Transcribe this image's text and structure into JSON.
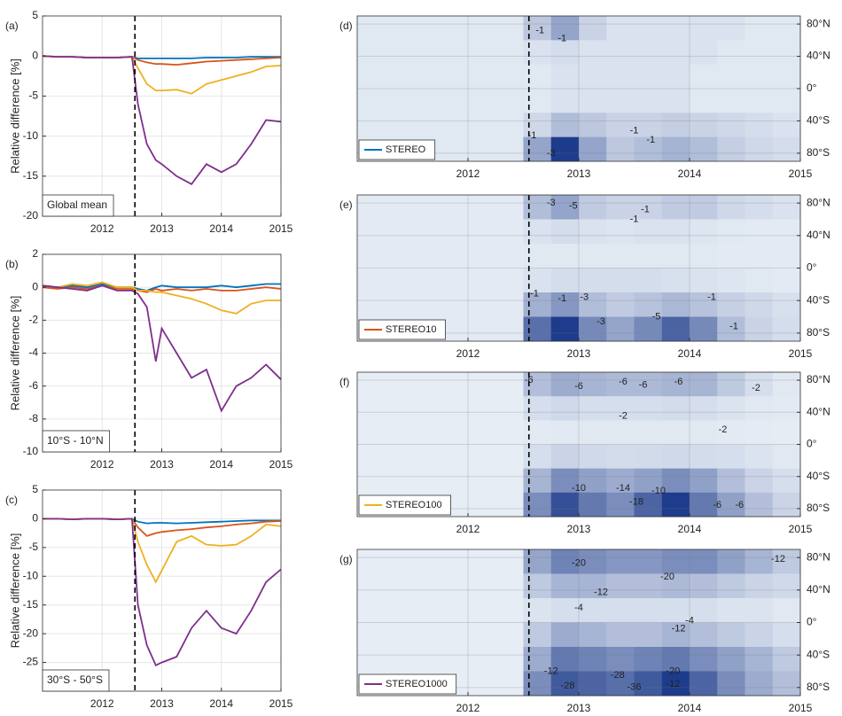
{
  "chart_data": [
    {
      "type": "line",
      "panel": "(a)",
      "region": "Global mean",
      "ylabel": "Relative difference [%]",
      "xlim": [
        2011,
        2015
      ],
      "xticks": [
        2012,
        2013,
        2014,
        2015
      ],
      "ylim": [
        -20,
        5
      ],
      "yticks": [
        -20,
        -15,
        -10,
        -5,
        0,
        5
      ],
      "grid": true,
      "marker_line": 2012.55,
      "x": [
        2011,
        2011.25,
        2011.5,
        2011.75,
        2012,
        2012.25,
        2012.5,
        2012.6,
        2012.75,
        2012.9,
        2013,
        2013.25,
        2013.5,
        2013.75,
        2014,
        2014.25,
        2014.5,
        2014.75,
        2015
      ],
      "series": [
        {
          "color": "#0072bd",
          "values": [
            0,
            -0.1,
            -0.1,
            -0.2,
            -0.2,
            -0.2,
            -0.1,
            -0.3,
            -0.3,
            -0.3,
            -0.3,
            -0.3,
            -0.3,
            -0.2,
            -0.2,
            -0.2,
            -0.1,
            -0.1,
            -0.1
          ]
        },
        {
          "color": "#d95319",
          "values": [
            0,
            -0.1,
            -0.1,
            -0.2,
            -0.2,
            -0.2,
            -0.1,
            -0.5,
            -0.8,
            -1,
            -1,
            -1.1,
            -0.9,
            -0.7,
            -0.6,
            -0.5,
            -0.4,
            -0.3,
            -0.2
          ]
        },
        {
          "color": "#edb120",
          "values": [
            0,
            -0.1,
            -0.1,
            -0.2,
            -0.2,
            -0.2,
            -0.1,
            -1.5,
            -3.5,
            -4.3,
            -4.3,
            -4.2,
            -4.7,
            -3.5,
            -3,
            -2.5,
            -2,
            -1.3,
            -1.2
          ]
        },
        {
          "color": "#7e2f8e",
          "values": [
            0,
            -0.1,
            -0.1,
            -0.2,
            -0.2,
            -0.2,
            -0.1,
            -6,
            -11,
            -13,
            -13.5,
            -15,
            -16,
            -13.5,
            -14.5,
            -13.5,
            -11,
            -8,
            -8.2
          ]
        }
      ]
    },
    {
      "type": "line",
      "panel": "(b)",
      "region": "10°S - 10°N",
      "ylabel": "Relative difference [%]",
      "xlim": [
        2011,
        2015
      ],
      "xticks": [
        2012,
        2013,
        2014,
        2015
      ],
      "ylim": [
        -10,
        2
      ],
      "yticks": [
        -10,
        -8,
        -6,
        -4,
        -2,
        0,
        2
      ],
      "grid": true,
      "marker_line": 2012.55,
      "x": [
        2011,
        2011.25,
        2011.5,
        2011.75,
        2012,
        2012.25,
        2012.5,
        2012.6,
        2012.75,
        2012.9,
        2013,
        2013.25,
        2013.5,
        2013.75,
        2014,
        2014.25,
        2014.5,
        2014.75,
        2015
      ],
      "series": [
        {
          "color": "#0072bd",
          "values": [
            0.1,
            0,
            0.1,
            0,
            0.2,
            0,
            0,
            -0.1,
            -0.2,
            0,
            0.1,
            0,
            0,
            0,
            0.1,
            0,
            0.1,
            0.2,
            0.2
          ]
        },
        {
          "color": "#d95319",
          "values": [
            0,
            -0.1,
            0,
            -0.1,
            0.1,
            -0.1,
            -0.1,
            -0.2,
            -0.3,
            -0.1,
            -0.2,
            -0.1,
            -0.2,
            -0.1,
            -0.2,
            -0.2,
            -0.1,
            0,
            -0.1
          ]
        },
        {
          "color": "#edb120",
          "values": [
            0.1,
            0,
            0.2,
            0.1,
            0.3,
            0,
            0,
            -0.2,
            -0.2,
            -0.3,
            -0.3,
            -0.5,
            -0.7,
            -1,
            -1.4,
            -1.6,
            -1,
            -0.8,
            -0.8
          ]
        },
        {
          "color": "#7e2f8e",
          "values": [
            0.1,
            0,
            -0.1,
            -0.2,
            0.1,
            -0.2,
            -0.2,
            -0.4,
            -1.2,
            -4.5,
            -2.5,
            -4,
            -5.5,
            -5,
            -7.5,
            -6,
            -5.5,
            -4.7,
            -5.6
          ]
        }
      ]
    },
    {
      "type": "line",
      "panel": "(c)",
      "region": "30°S - 50°S",
      "ylabel": "Relative difference [%]",
      "xlim": [
        2011,
        2015
      ],
      "xticks": [
        2012,
        2013,
        2014,
        2015
      ],
      "ylim": [
        -30,
        5
      ],
      "yticks": [
        -25,
        -20,
        -15,
        -10,
        -5,
        0,
        5
      ],
      "grid": true,
      "marker_line": 2012.55,
      "x": [
        2011,
        2011.25,
        2011.5,
        2011.75,
        2012,
        2012.25,
        2012.5,
        2012.6,
        2012.75,
        2012.9,
        2013,
        2013.25,
        2013.5,
        2013.75,
        2014,
        2014.25,
        2014.5,
        2014.75,
        2015
      ],
      "series": [
        {
          "color": "#0072bd",
          "values": [
            0,
            0,
            -0.1,
            0,
            0,
            -0.1,
            0,
            -0.5,
            -0.8,
            -0.7,
            -0.7,
            -0.8,
            -0.7,
            -0.6,
            -0.5,
            -0.4,
            -0.3,
            -0.3,
            -0.3
          ]
        },
        {
          "color": "#d95319",
          "values": [
            0,
            0,
            -0.1,
            0,
            0,
            -0.1,
            0,
            -1.5,
            -3,
            -2.5,
            -2.3,
            -2,
            -1.8,
            -1.5,
            -1.3,
            -1,
            -0.8,
            -0.5,
            -0.4
          ]
        },
        {
          "color": "#edb120",
          "values": [
            0,
            0,
            -0.1,
            0,
            0,
            -0.1,
            0,
            -4,
            -8,
            -11,
            -9,
            -4,
            -3,
            -4.5,
            -4.7,
            -4.5,
            -3,
            -1,
            -1.3
          ]
        },
        {
          "color": "#7e2f8e",
          "values": [
            0,
            0,
            -0.1,
            0,
            0,
            -0.1,
            0,
            -15,
            -22,
            -25.5,
            -25,
            -24,
            -19,
            -16,
            -19,
            -20,
            -16,
            -11,
            -8.8
          ]
        }
      ]
    },
    {
      "type": "heatmap",
      "panel": "(d)",
      "legend": {
        "name": "STEREO",
        "color": "#0072bd"
      },
      "xlim": [
        2011,
        2015
      ],
      "xticks": [
        2012,
        2013,
        2014,
        2015
      ],
      "ylim": [
        -90,
        90
      ],
      "grid": true,
      "marker_line": 2012.55,
      "yticks": [
        {
          "value": -80,
          "label": "80°S"
        },
        {
          "value": -40,
          "label": "40°S"
        },
        {
          "value": 0,
          "label": "0°"
        },
        {
          "value": 40,
          "label": "40°N"
        },
        {
          "value": 80,
          "label": "80°N"
        }
      ],
      "x_edges": [
        2011,
        2011.25,
        2011.5,
        2011.75,
        2012,
        2012.25,
        2012.5,
        2012.75,
        2013,
        2013.25,
        2013.5,
        2013.75,
        2014,
        2014.25,
        2014.5,
        2014.75,
        2015
      ],
      "y_edges": [
        90,
        60,
        30,
        0,
        -30,
        -60,
        -90
      ],
      "z": [
        [
          -0.2,
          -0.2,
          -0.2,
          -0.2,
          -0.2,
          -0.2,
          -0.8,
          -1.5,
          -0.6,
          -0.3,
          -0.3,
          -0.3,
          -0.3,
          -0.3,
          -0.2,
          -0.2
        ],
        [
          -0.2,
          -0.2,
          -0.2,
          -0.2,
          -0.2,
          -0.2,
          -0.3,
          -0.4,
          -0.3,
          -0.3,
          -0.3,
          -0.3,
          -0.3,
          -0.2,
          -0.2,
          -0.2
        ],
        [
          -0.2,
          -0.2,
          -0.2,
          -0.2,
          -0.2,
          -0.2,
          -0.2,
          -0.3,
          -0.3,
          -0.3,
          -0.3,
          -0.3,
          -0.2,
          -0.2,
          -0.2,
          -0.2
        ],
        [
          -0.2,
          -0.2,
          -0.2,
          -0.2,
          -0.2,
          -0.2,
          -0.2,
          -0.3,
          -0.3,
          -0.3,
          -0.3,
          -0.3,
          -0.2,
          -0.2,
          -0.2,
          -0.2
        ],
        [
          -0.2,
          -0.2,
          -0.2,
          -0.2,
          -0.2,
          -0.2,
          -0.5,
          -1,
          -0.8,
          -0.6,
          -0.6,
          -0.7,
          -0.6,
          -0.5,
          -0.4,
          -0.3
        ],
        [
          -0.2,
          -0.2,
          -0.2,
          -0.2,
          -0.2,
          -0.2,
          -1.5,
          -3.5,
          -1.5,
          -0.8,
          -1,
          -1.2,
          -1,
          -0.7,
          -0.5,
          -0.4
        ]
      ],
      "contour_labels": [
        -1,
        -1,
        -3,
        -1,
        -1,
        -1
      ]
    },
    {
      "type": "heatmap",
      "panel": "(e)",
      "legend": {
        "name": "STEREO10",
        "color": "#d95319"
      },
      "xlim": [
        2011,
        2015
      ],
      "xticks": [
        2012,
        2013,
        2014,
        2015
      ],
      "ylim": [
        -90,
        90
      ],
      "grid": true,
      "marker_line": 2012.55,
      "yticks": [
        {
          "value": -80,
          "label": "80°S"
        },
        {
          "value": -40,
          "label": "40°S"
        },
        {
          "value": 0,
          "label": "0°"
        },
        {
          "value": 40,
          "label": "40°N"
        },
        {
          "value": 80,
          "label": "80°N"
        }
      ],
      "x_edges": [
        2011,
        2011.25,
        2011.5,
        2011.75,
        2012,
        2012.25,
        2012.5,
        2012.75,
        2013,
        2013.25,
        2013.5,
        2013.75,
        2014,
        2014.25,
        2014.5,
        2014.75,
        2015
      ],
      "y_edges": [
        90,
        60,
        30,
        0,
        -30,
        -60,
        -90
      ],
      "z": [
        [
          -0.3,
          -0.3,
          -0.3,
          -0.3,
          -0.3,
          -0.3,
          -2,
          -3,
          -1.5,
          -1.2,
          -1.2,
          -1.5,
          -1.5,
          -1,
          -0.8,
          -0.6
        ],
        [
          -0.3,
          -0.3,
          -0.3,
          -0.3,
          -0.3,
          -0.3,
          -0.6,
          -0.8,
          -0.6,
          -0.5,
          -0.6,
          -0.6,
          -0.5,
          -0.4,
          -0.3,
          -0.3
        ],
        [
          -0.3,
          -0.3,
          -0.3,
          -0.3,
          -0.3,
          -0.3,
          -0.4,
          -0.4,
          -0.4,
          -0.4,
          -0.4,
          -0.4,
          -0.4,
          -0.3,
          -0.3,
          -0.3
        ],
        [
          -0.3,
          -0.3,
          -0.3,
          -0.3,
          -0.3,
          -0.3,
          -0.6,
          -0.8,
          -0.8,
          -0.8,
          -0.8,
          -0.7,
          -0.6,
          -0.5,
          -0.4,
          -0.3
        ],
        [
          -0.3,
          -0.3,
          -0.3,
          -0.3,
          -0.3,
          -0.3,
          -2.5,
          -3.5,
          -2,
          -1.5,
          -1.8,
          -2.2,
          -1.8,
          -1.3,
          -1,
          -0.7
        ],
        [
          -0.3,
          -0.3,
          -0.3,
          -0.3,
          -0.3,
          -0.3,
          -5,
          -7,
          -4,
          -3,
          -4,
          -5.5,
          -4,
          -2,
          -1.2,
          -0.8
        ]
      ],
      "contour_labels": [
        -3,
        -5,
        -1,
        -1,
        -1,
        -1,
        -3,
        -1,
        -3,
        -5,
        -1
      ]
    },
    {
      "type": "heatmap",
      "panel": "(f)",
      "legend": {
        "name": "STEREO100",
        "color": "#edb120"
      },
      "xlim": [
        2011,
        2015
      ],
      "xticks": [
        2012,
        2013,
        2014,
        2015
      ],
      "ylim": [
        -90,
        90
      ],
      "grid": true,
      "marker_line": 2012.55,
      "yticks": [
        {
          "value": -80,
          "label": "80°S"
        },
        {
          "value": -40,
          "label": "40°S"
        },
        {
          "value": 0,
          "label": "0°"
        },
        {
          "value": 40,
          "label": "40°N"
        },
        {
          "value": 80,
          "label": "80°N"
        }
      ],
      "x_edges": [
        2011,
        2011.25,
        2011.5,
        2011.75,
        2012,
        2012.25,
        2012.5,
        2012.75,
        2013,
        2013.25,
        2013.5,
        2013.75,
        2014,
        2014.25,
        2014.5,
        2014.75,
        2015
      ],
      "y_edges": [
        90,
        60,
        30,
        0,
        -30,
        -60,
        -90
      ],
      "z": [
        [
          -0.5,
          -0.5,
          -0.5,
          -0.5,
          -0.5,
          -0.5,
          -5,
          -7,
          -6,
          -5.5,
          -5.5,
          -6,
          -6,
          -4,
          -2,
          -1
        ],
        [
          -0.5,
          -0.5,
          -0.5,
          -0.5,
          -0.5,
          -0.5,
          -2,
          -2.5,
          -2,
          -2,
          -2,
          -2.2,
          -2,
          -1.5,
          -1,
          -0.8
        ],
        [
          -0.5,
          -0.5,
          -0.5,
          -0.5,
          -0.5,
          -0.5,
          -0.8,
          -1,
          -1,
          -1,
          -1,
          -1,
          -1,
          -0.8,
          -0.7,
          -0.6
        ],
        [
          -0.5,
          -0.5,
          -0.5,
          -0.5,
          -0.5,
          -0.5,
          -2,
          -3,
          -2.5,
          -2.2,
          -2.3,
          -2.5,
          -2.2,
          -2,
          -1.5,
          -1
        ],
        [
          -0.5,
          -0.5,
          -0.5,
          -0.5,
          -0.5,
          -0.5,
          -6,
          -10,
          -8,
          -7,
          -8,
          -10,
          -8,
          -5,
          -3,
          -2
        ],
        [
          -0.5,
          -0.5,
          -0.5,
          -0.5,
          -0.5,
          -0.5,
          -10,
          -16,
          -12,
          -10,
          -14,
          -18,
          -12,
          -8,
          -5,
          -3
        ]
      ],
      "contour_labels": [
        -6,
        -6,
        -6,
        -6,
        -6,
        -2,
        -2,
        -2,
        -10,
        -14,
        -18,
        -10,
        -6,
        -6
      ]
    },
    {
      "type": "heatmap",
      "panel": "(g)",
      "legend": {
        "name": "STEREO1000",
        "color": "#7e2f8e"
      },
      "xlim": [
        2011,
        2015
      ],
      "xticks": [
        2012,
        2013,
        2014,
        2015
      ],
      "ylim": [
        -90,
        90
      ],
      "grid": true,
      "marker_line": 2012.55,
      "yticks": [
        {
          "value": -80,
          "label": "80°S"
        },
        {
          "value": -40,
          "label": "40°S"
        },
        {
          "value": 0,
          "label": "0°"
        },
        {
          "value": 40,
          "label": "40°N"
        },
        {
          "value": 80,
          "label": "80°N"
        }
      ],
      "x_edges": [
        2011,
        2011.25,
        2011.5,
        2011.75,
        2012,
        2012.25,
        2012.5,
        2012.75,
        2013,
        2013.25,
        2013.5,
        2013.75,
        2014,
        2014.25,
        2014.5,
        2014.75,
        2015
      ],
      "y_edges": [
        90,
        60,
        30,
        0,
        -30,
        -60,
        -90
      ],
      "z": [
        [
          -1,
          -1,
          -1,
          -1,
          -1,
          -1,
          -15,
          -22,
          -20,
          -18,
          -18,
          -20,
          -20,
          -16,
          -12,
          -8
        ],
        [
          -1,
          -1,
          -1,
          -1,
          -1,
          -1,
          -8,
          -12,
          -12,
          -10,
          -10,
          -11,
          -10,
          -8,
          -6,
          -5
        ],
        [
          -1,
          -1,
          -1,
          -1,
          -1,
          -1,
          -3,
          -4,
          -4,
          -4,
          -4,
          -4,
          -4,
          -3,
          -3,
          -2
        ],
        [
          -1,
          -1,
          -1,
          -1,
          -1,
          -1,
          -8,
          -14,
          -12,
          -10,
          -10,
          -12,
          -10,
          -8,
          -6,
          -4
        ],
        [
          -1,
          -1,
          -1,
          -1,
          -1,
          -1,
          -14,
          -24,
          -22,
          -20,
          -22,
          -24,
          -20,
          -16,
          -12,
          -8
        ],
        [
          -1,
          -1,
          -1,
          -1,
          -1,
          -1,
          -20,
          -30,
          -28,
          -26,
          -30,
          -36,
          -28,
          -20,
          -14,
          -10
        ]
      ],
      "contour_labels": [
        -20,
        -20,
        -12,
        -12,
        -4,
        -4,
        -12,
        -12,
        -28,
        -28,
        -36,
        -20,
        -12
      ]
    }
  ]
}
